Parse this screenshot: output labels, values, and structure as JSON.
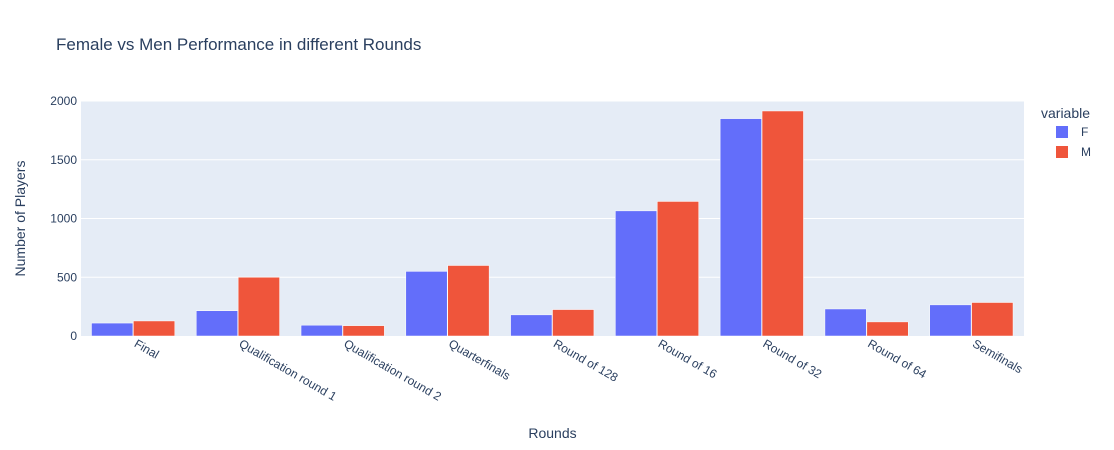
{
  "chart_data": {
    "type": "bar",
    "title": "Female vs Men Performance in different Rounds",
    "xlabel": "Rounds",
    "ylabel": "Number of Players",
    "ylim": [
      0,
      2000
    ],
    "yticks": [
      0,
      500,
      1000,
      1500,
      2000
    ],
    "ytick_labels": [
      "0",
      "500",
      "1000",
      "1500",
      "2000"
    ],
    "categories": [
      "Final",
      "Qualification round 1",
      "Qualification round 2",
      "Quarterfinals",
      "Round of 128",
      "Round of 16",
      "Round of 32",
      "Round of 64",
      "Semifinals"
    ],
    "series": [
      {
        "name": "F",
        "color": "#636efa",
        "values": [
          110,
          215,
          92,
          550,
          180,
          1065,
          1850,
          230,
          265
        ]
      },
      {
        "name": "M",
        "color": "#ef553b",
        "values": [
          128,
          500,
          88,
          600,
          225,
          1145,
          1915,
          120,
          285
        ]
      }
    ],
    "legend": {
      "title": "variable",
      "position": "right"
    },
    "grid": true,
    "plot_background": "#e5ecf6"
  }
}
